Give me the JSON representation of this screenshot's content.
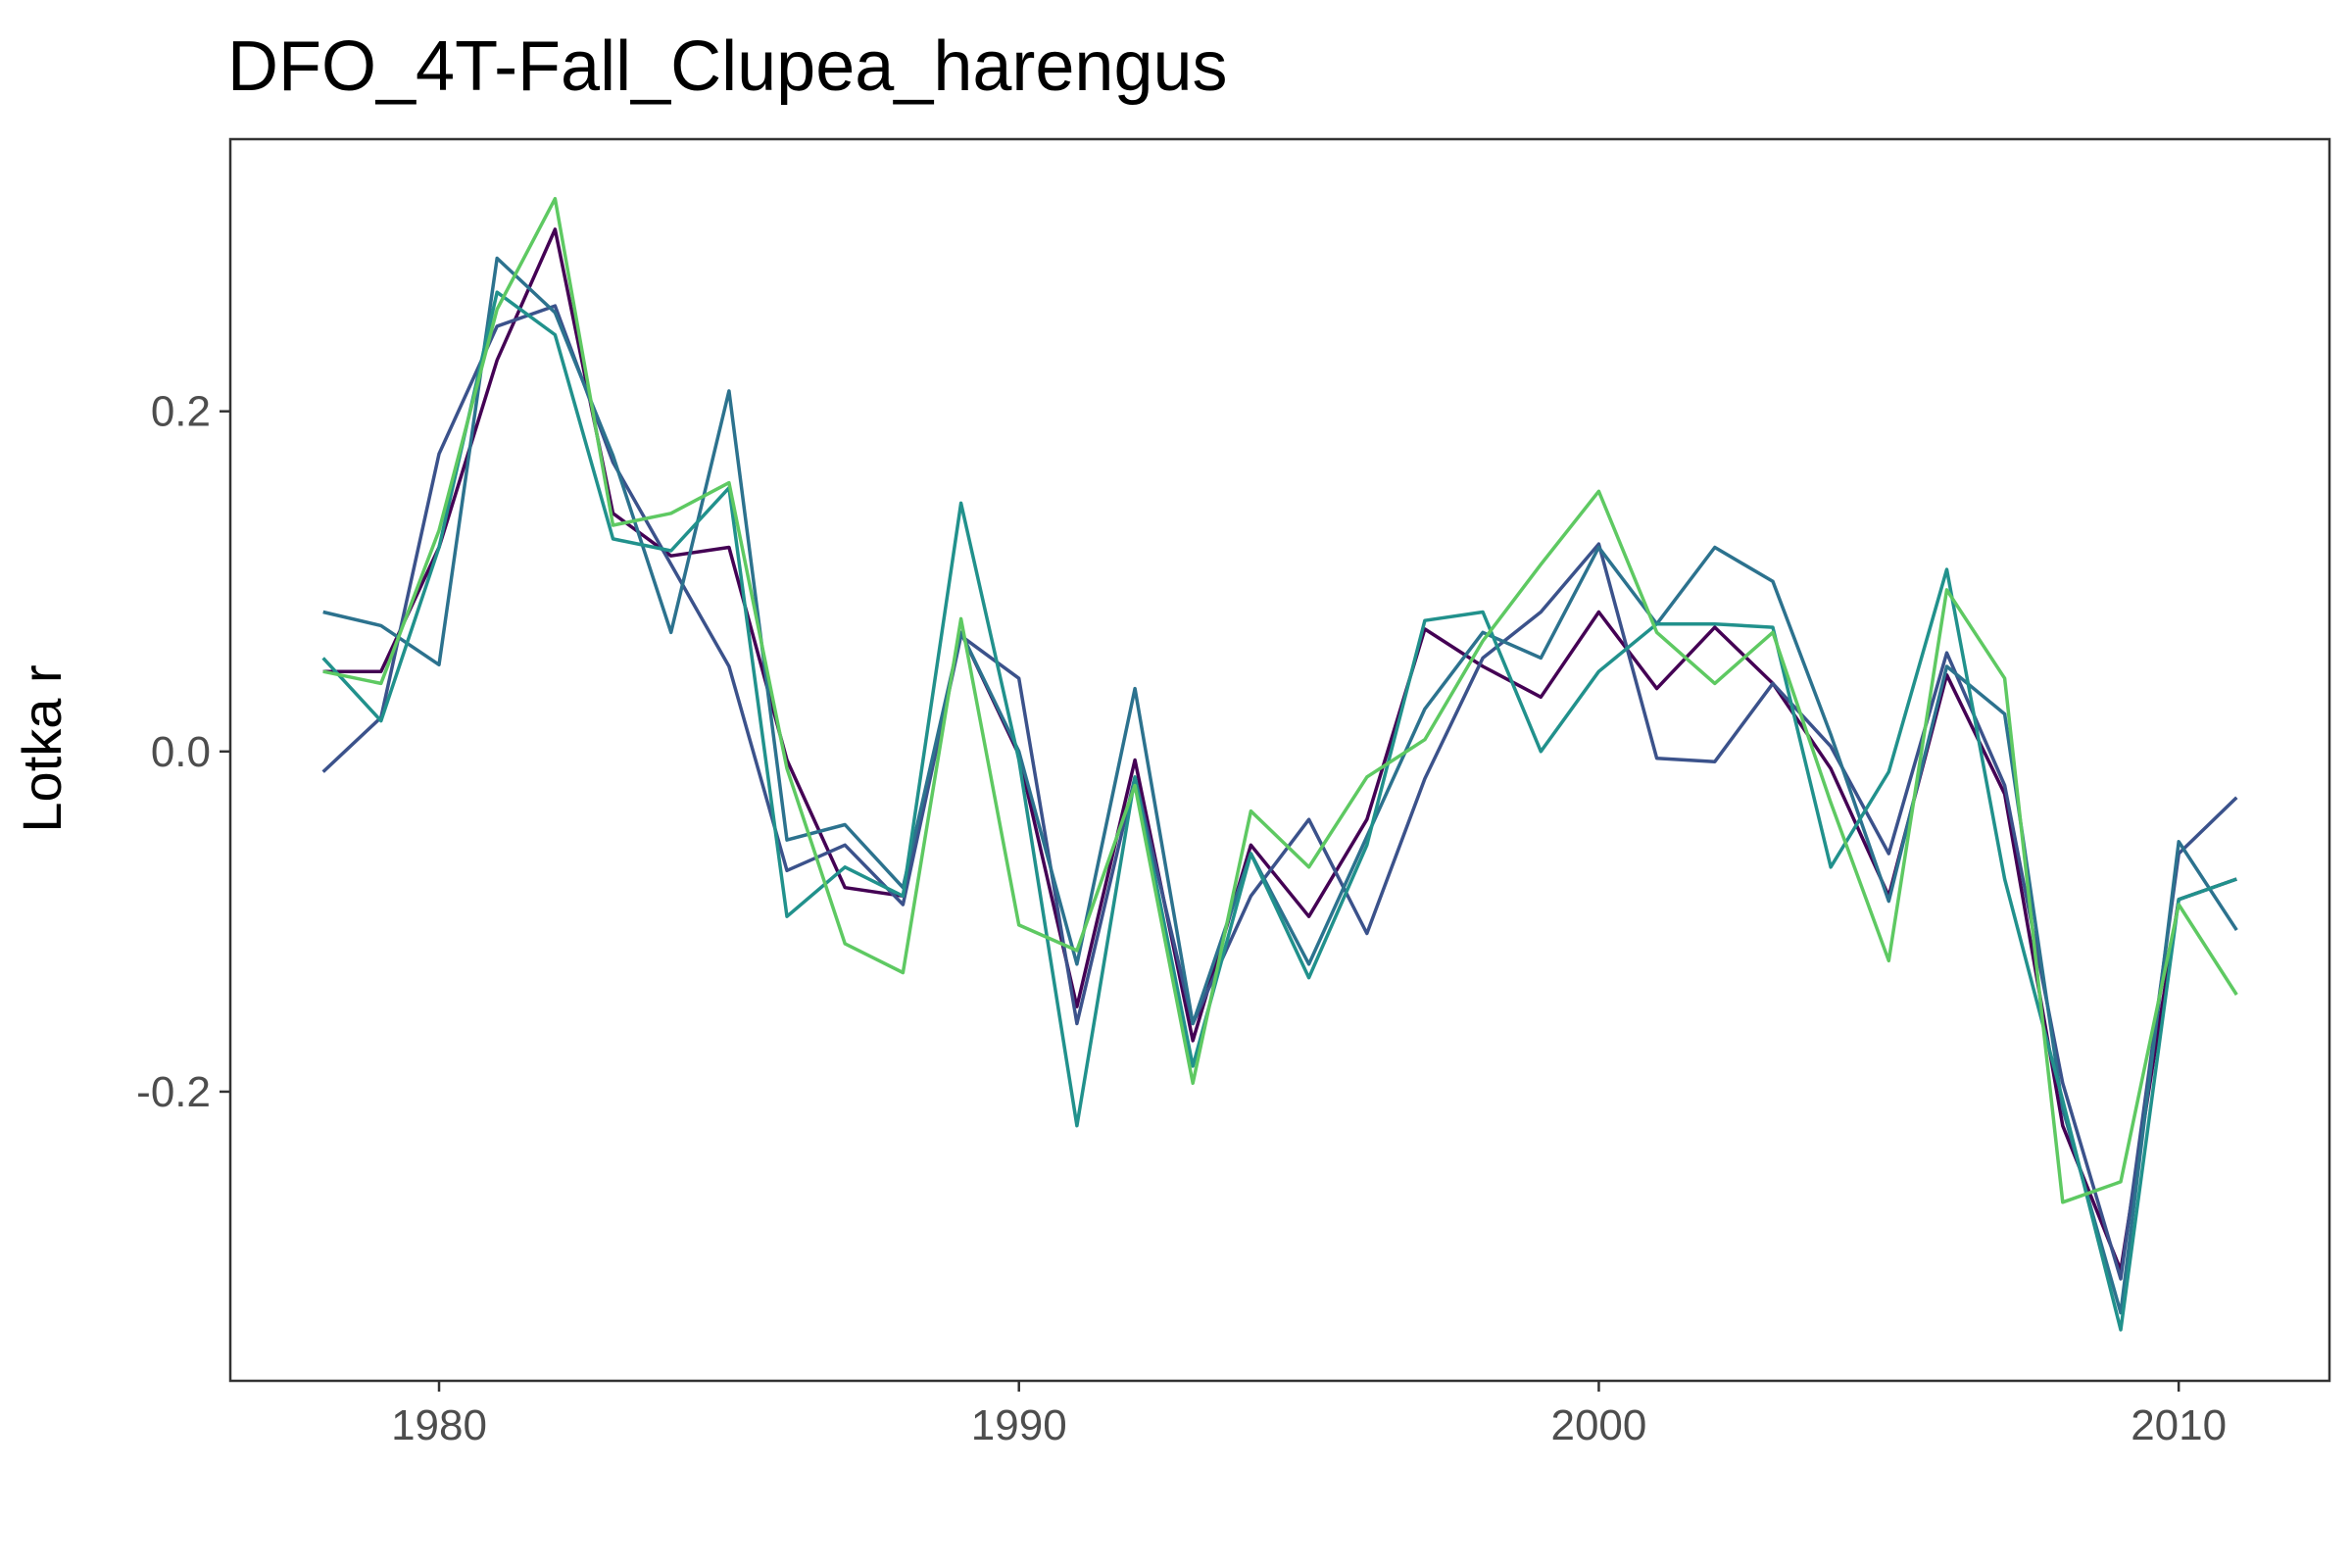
{
  "chart_data": {
    "type": "line",
    "title": "DFO_4T-Fall_Clupea_harengus",
    "xlabel": "",
    "ylabel": "Lotka r",
    "xlim": [
      1976.4,
      2012.6
    ],
    "ylim": [
      -0.37,
      0.36
    ],
    "x_ticks": [
      1980,
      1990,
      2000,
      2010
    ],
    "y_ticks": [
      -0.2,
      0.0,
      0.2
    ],
    "x_tick_labels": [
      "1980",
      "1990",
      "2000",
      "2010"
    ],
    "y_tick_labels": [
      "-0.2",
      "0.0",
      "0.2"
    ],
    "grid": false,
    "legend": "none",
    "x": [
      1978,
      1979,
      1980,
      1981,
      1982,
      1983,
      1984,
      1985,
      1986,
      1987,
      1988,
      1989,
      1990,
      1991,
      1992,
      1993,
      1994,
      1995,
      1996,
      1997,
      1998,
      1999,
      2000,
      2001,
      2002,
      2003,
      2004,
      2005,
      2006,
      2007,
      2008,
      2009,
      2010,
      2011
    ],
    "series": [
      {
        "color": "#440154",
        "values": [
          0.047,
          0.047,
          0.12,
          0.23,
          0.307,
          0.14,
          0.115,
          0.12,
          -0.005,
          -0.08,
          -0.085,
          0.07,
          -0.002,
          -0.15,
          -0.005,
          -0.17,
          -0.055,
          -0.097,
          -0.04,
          0.072,
          0.05,
          0.032,
          0.082,
          0.037,
          0.073,
          0.04,
          -0.01,
          -0.085,
          0.045,
          -0.025,
          -0.22,
          -0.305,
          -0.087,
          -0.075
        ]
      },
      {
        "color": "#3b528b",
        "values": [
          -0.012,
          0.02,
          0.175,
          0.25,
          0.262,
          0.17,
          0.11,
          0.05,
          -0.07,
          -0.055,
          -0.09,
          0.068,
          0.043,
          -0.16,
          -0.015,
          -0.16,
          -0.085,
          -0.04,
          -0.107,
          -0.016,
          0.055,
          0.082,
          0.122,
          -0.004,
          -0.006,
          0.04,
          0.003,
          -0.06,
          0.058,
          -0.02,
          -0.195,
          -0.31,
          -0.06,
          -0.027
        ]
      },
      {
        "color": "#2c728e",
        "values": [
          0.082,
          0.074,
          0.051,
          0.29,
          0.258,
          0.174,
          0.07,
          0.212,
          -0.052,
          -0.043,
          -0.08,
          0.07,
          0.0,
          -0.125,
          0.037,
          -0.16,
          -0.06,
          -0.125,
          -0.05,
          0.025,
          0.07,
          0.055,
          0.12,
          0.075,
          0.12,
          0.1,
          0.01,
          -0.088,
          0.05,
          0.022,
          -0.21,
          -0.33,
          -0.053,
          -0.105
        ]
      },
      {
        "color": "#21918c",
        "values": [
          0.055,
          0.018,
          0.12,
          0.27,
          0.245,
          0.125,
          0.118,
          0.155,
          -0.097,
          -0.068,
          -0.085,
          0.146,
          -0.005,
          -0.22,
          -0.015,
          -0.185,
          -0.06,
          -0.133,
          -0.055,
          0.077,
          0.082,
          0.0,
          0.047,
          0.075,
          0.075,
          0.073,
          -0.068,
          -0.012,
          0.107,
          -0.075,
          -0.205,
          -0.34,
          -0.087,
          -0.075
        ]
      },
      {
        "color": "#5ec962",
        "values": [
          0.047,
          0.04,
          0.13,
          0.26,
          0.325,
          0.133,
          0.14,
          0.158,
          -0.01,
          -0.113,
          -0.13,
          0.078,
          -0.102,
          -0.117,
          -0.02,
          -0.195,
          -0.035,
          -0.068,
          -0.015,
          0.007,
          0.065,
          0.11,
          0.153,
          0.07,
          0.04,
          0.07,
          -0.03,
          -0.123,
          0.095,
          0.043,
          -0.265,
          -0.253,
          -0.09,
          -0.143
        ]
      }
    ]
  }
}
